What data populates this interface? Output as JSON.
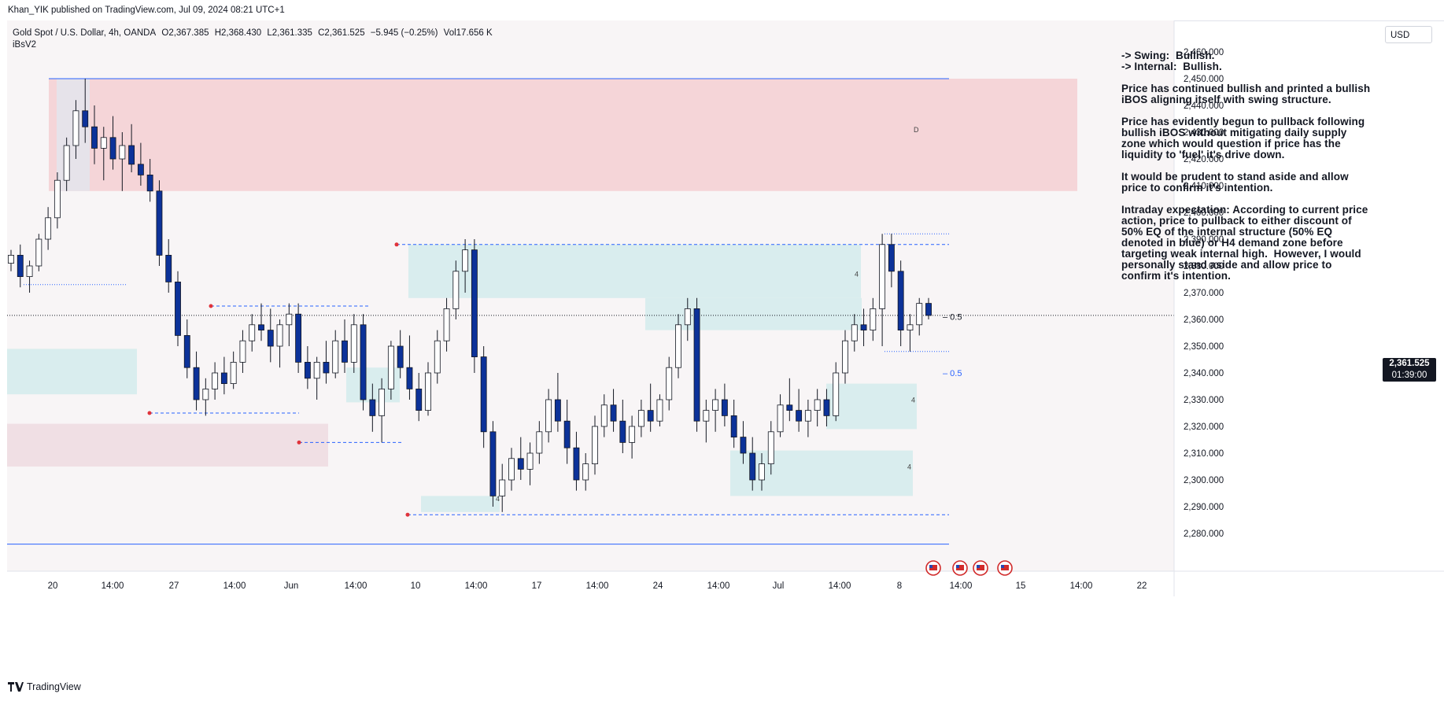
{
  "header": {
    "published_by": "Khan_YIK published on TradingView.com, Jul 09, 2024 08:21 UTC+1"
  },
  "legend": {
    "symbol": "Gold Spot / U.S. Dollar, 4h, OANDA",
    "open": "O2,367.385",
    "high": "H2,368.430",
    "low": "L2,361.335",
    "close": "C2,361.525",
    "change": "−5.945 (−0.25%)",
    "volume": "Vol17.656 K",
    "indicator": "iBsV2"
  },
  "axis": {
    "currency": "USD",
    "current_price": "2,361.525",
    "countdown": "01:39:00"
  },
  "notes": {
    "swing": "-> Swing:  Bullish.",
    "internal": "-> Internal:  Bullish.",
    "p1": "Price has continued bullish and printed a bullish iBOS aligning itself with swing structure.",
    "p2": "Price has evidently begun to pullback following bullish iBOS without mitigating daily supply zone which would question if price has the liquidity to 'fuel' it's drive down.",
    "p3": "It would be prudent to stand aside and allow price to confirm it's intention.",
    "p4": "Intraday expectation: According to current price action, price to pullback to either discount of 50% EQ of the internal structure (50% EQ denoted in blue) or H4 demand zone before targeting weak internal high.  However, I would personally stand aside and allow price to confirm it's intention."
  },
  "footer": {
    "brand": "TradingView"
  },
  "colors": {
    "bull": "#ffffff",
    "bear": "#0c3299",
    "wick": "#131722",
    "supply": "#f5d5d8",
    "demand": "#d3ebec",
    "struct_line": "#2962ff"
  },
  "chart_data": {
    "type": "candlestick",
    "timeframe": "4h",
    "ylim": [
      2275,
      2465
    ],
    "y_ticks": [
      "2,280.000",
      "2,290.000",
      "2,300.000",
      "2,310.000",
      "2,320.000",
      "2,330.000",
      "2,340.000",
      "2,350.000",
      "2,360.000",
      "2,370.000",
      "2,380.000",
      "2,390.000",
      "2,400.000",
      "2,410.000",
      "2,420.000",
      "2,430.000",
      "2,440.000",
      "2,450.000",
      "2,460.000"
    ],
    "x_ticks": [
      "20",
      "14:00",
      "27",
      "14:00",
      "Jun",
      "14:00",
      "10",
      "14:00",
      "17",
      "14:00",
      "24",
      "14:00",
      "Jul",
      "14:00",
      "8",
      "14:00",
      "15",
      "14:00",
      "22"
    ],
    "current_price": 2361.525,
    "levels": {
      "swing_high": 2450,
      "swing_low": 2287,
      "internal_high": 2388,
      "eq_label": "0.5"
    },
    "zone_labels": {
      "supply": "D",
      "demand": "4"
    },
    "candles": [
      [
        2381,
        2386,
        2378,
        2384
      ],
      [
        2384,
        2388,
        2372,
        2376
      ],
      [
        2376,
        2382,
        2370,
        2380
      ],
      [
        2380,
        2392,
        2378,
        2390
      ],
      [
        2390,
        2402,
        2386,
        2398
      ],
      [
        2398,
        2415,
        2394,
        2412
      ],
      [
        2412,
        2428,
        2408,
        2425
      ],
      [
        2425,
        2442,
        2420,
        2438
      ],
      [
        2438,
        2450,
        2426,
        2432
      ],
      [
        2432,
        2440,
        2418,
        2424
      ],
      [
        2424,
        2432,
        2412,
        2428
      ],
      [
        2428,
        2436,
        2416,
        2420
      ],
      [
        2420,
        2430,
        2408,
        2425
      ],
      [
        2425,
        2433,
        2415,
        2418
      ],
      [
        2418,
        2426,
        2410,
        2414
      ],
      [
        2414,
        2420,
        2404,
        2408
      ],
      [
        2408,
        2412,
        2380,
        2384
      ],
      [
        2384,
        2390,
        2370,
        2374
      ],
      [
        2374,
        2378,
        2350,
        2354
      ],
      [
        2354,
        2360,
        2338,
        2342
      ],
      [
        2342,
        2348,
        2326,
        2330
      ],
      [
        2330,
        2338,
        2324,
        2334
      ],
      [
        2334,
        2344,
        2330,
        2340
      ],
      [
        2340,
        2346,
        2332,
        2336
      ],
      [
        2336,
        2348,
        2334,
        2344
      ],
      [
        2344,
        2356,
        2340,
        2352
      ],
      [
        2352,
        2362,
        2348,
        2358
      ],
      [
        2358,
        2366,
        2352,
        2356
      ],
      [
        2356,
        2364,
        2344,
        2350
      ],
      [
        2350,
        2360,
        2342,
        2358
      ],
      [
        2358,
        2366,
        2350,
        2362
      ],
      [
        2362,
        2366,
        2340,
        2344
      ],
      [
        2344,
        2350,
        2334,
        2338
      ],
      [
        2338,
        2346,
        2330,
        2344
      ],
      [
        2344,
        2352,
        2336,
        2340
      ],
      [
        2340,
        2356,
        2338,
        2352
      ],
      [
        2352,
        2360,
        2340,
        2344
      ],
      [
        2344,
        2362,
        2340,
        2358
      ],
      [
        2358,
        2362,
        2326,
        2330
      ],
      [
        2330,
        2336,
        2318,
        2324
      ],
      [
        2324,
        2338,
        2314,
        2334
      ],
      [
        2334,
        2352,
        2330,
        2350
      ],
      [
        2350,
        2356,
        2338,
        2342
      ],
      [
        2342,
        2354,
        2330,
        2334
      ],
      [
        2334,
        2340,
        2322,
        2326
      ],
      [
        2326,
        2344,
        2324,
        2340
      ],
      [
        2340,
        2356,
        2336,
        2352
      ],
      [
        2352,
        2368,
        2348,
        2364
      ],
      [
        2364,
        2382,
        2360,
        2378
      ],
      [
        2378,
        2390,
        2370,
        2386
      ],
      [
        2386,
        2390,
        2340,
        2346
      ],
      [
        2346,
        2350,
        2312,
        2318
      ],
      [
        2318,
        2322,
        2290,
        2294
      ],
      [
        2294,
        2306,
        2288,
        2300
      ],
      [
        2300,
        2312,
        2296,
        2308
      ],
      [
        2308,
        2316,
        2300,
        2304
      ],
      [
        2304,
        2314,
        2298,
        2310
      ],
      [
        2310,
        2322,
        2306,
        2318
      ],
      [
        2318,
        2334,
        2314,
        2330
      ],
      [
        2330,
        2340,
        2318,
        2322
      ],
      [
        2322,
        2330,
        2306,
        2312
      ],
      [
        2312,
        2318,
        2296,
        2300
      ],
      [
        2300,
        2310,
        2296,
        2306
      ],
      [
        2306,
        2324,
        2302,
        2320
      ],
      [
        2320,
        2332,
        2316,
        2328
      ],
      [
        2328,
        2334,
        2318,
        2322
      ],
      [
        2322,
        2330,
        2310,
        2314
      ],
      [
        2314,
        2324,
        2308,
        2320
      ],
      [
        2320,
        2330,
        2316,
        2326
      ],
      [
        2326,
        2336,
        2318,
        2322
      ],
      [
        2322,
        2332,
        2320,
        2330
      ],
      [
        2330,
        2346,
        2326,
        2342
      ],
      [
        2342,
        2362,
        2338,
        2358
      ],
      [
        2358,
        2368,
        2352,
        2364
      ],
      [
        2364,
        2368,
        2318,
        2322
      ],
      [
        2322,
        2330,
        2314,
        2326
      ],
      [
        2326,
        2334,
        2318,
        2330
      ],
      [
        2330,
        2336,
        2320,
        2324
      ],
      [
        2324,
        2330,
        2312,
        2316
      ],
      [
        2316,
        2322,
        2306,
        2310
      ],
      [
        2310,
        2316,
        2296,
        2300
      ],
      [
        2300,
        2310,
        2296,
        2306
      ],
      [
        2306,
        2322,
        2302,
        2318
      ],
      [
        2318,
        2332,
        2316,
        2328
      ],
      [
        2328,
        2338,
        2322,
        2326
      ],
      [
        2326,
        2334,
        2318,
        2322
      ],
      [
        2322,
        2330,
        2316,
        2326
      ],
      [
        2326,
        2334,
        2320,
        2330
      ],
      [
        2330,
        2334,
        2320,
        2324
      ],
      [
        2324,
        2344,
        2322,
        2340
      ],
      [
        2340,
        2356,
        2336,
        2352
      ],
      [
        2352,
        2362,
        2348,
        2358
      ],
      [
        2358,
        2364,
        2350,
        2356
      ],
      [
        2356,
        2368,
        2352,
        2364
      ],
      [
        2364,
        2392,
        2350,
        2388
      ],
      [
        2388,
        2392,
        2372,
        2378
      ],
      [
        2378,
        2382,
        2350,
        2356
      ],
      [
        2356,
        2362,
        2348,
        2358
      ],
      [
        2358,
        2368,
        2354,
        2366
      ],
      [
        2366,
        2368,
        2360,
        2361.5
      ]
    ]
  }
}
